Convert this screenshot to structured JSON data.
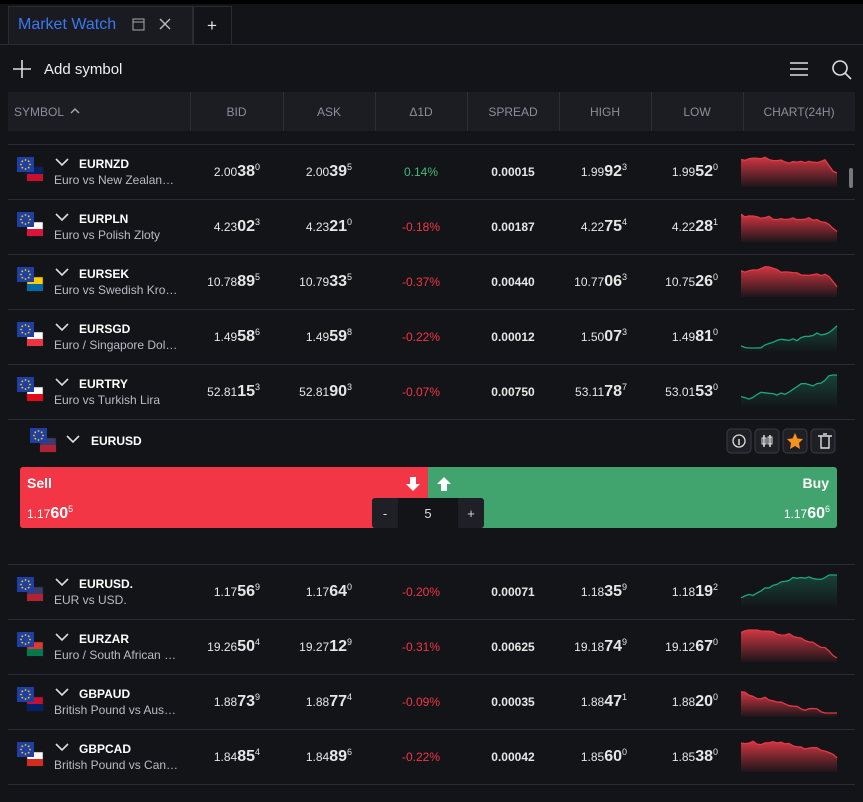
{
  "tab": {
    "title": "Market Watch",
    "add_tab": "+"
  },
  "toolbar": {
    "add_symbol": "Add symbol"
  },
  "columns": [
    "SYMBOL",
    "BID",
    "ASK",
    "Δ1D",
    "SPREAD",
    "HIGH",
    "LOW",
    "CHART(24H)"
  ],
  "rows": [
    {
      "symbol": "EURNZD",
      "desc": "Euro vs New Zealan…",
      "bid": [
        "2.00",
        "38",
        "0"
      ],
      "ask": [
        "2.00",
        "39",
        "5"
      ],
      "change": "0.14%",
      "spread": "0.00015",
      "high": [
        "1.99",
        "92",
        "3"
      ],
      "low": [
        "1.99",
        "52",
        "0"
      ]
    },
    {
      "symbol": "EURPLN",
      "desc": "Euro vs Polish Zloty",
      "bid": [
        "4.23",
        "02",
        "3"
      ],
      "ask": [
        "4.23",
        "21",
        "0"
      ],
      "change": "-0.18%",
      "spread": "0.00187",
      "high": [
        "4.22",
        "75",
        "4"
      ],
      "low": [
        "4.22",
        "28",
        "1"
      ]
    },
    {
      "symbol": "EURSEK",
      "desc": "Euro vs Swedish Kro…",
      "bid": [
        "10.78",
        "89",
        "5"
      ],
      "ask": [
        "10.79",
        "33",
        "5"
      ],
      "change": "-0.37%",
      "spread": "0.00440",
      "high": [
        "10.77",
        "06",
        "3"
      ],
      "low": [
        "10.75",
        "26",
        "0"
      ]
    },
    {
      "symbol": "EURSGD",
      "desc": "Euro / Singapore Dol…",
      "bid": [
        "1.49",
        "58",
        "6"
      ],
      "ask": [
        "1.49",
        "59",
        "8"
      ],
      "change": "-0.22%",
      "spread": "0.00012",
      "high": [
        "1.50",
        "07",
        "3"
      ],
      "low": [
        "1.49",
        "81",
        "0"
      ]
    },
    {
      "symbol": "EURTRY",
      "desc": "Euro vs Turkish Lira",
      "bid": [
        "52.81",
        "15",
        "3"
      ],
      "ask": [
        "52.81",
        "90",
        "3"
      ],
      "change": "-0.07%",
      "spread": "0.00750",
      "high": [
        "53.11",
        "78",
        "7"
      ],
      "low": [
        "53.01",
        "53",
        "0"
      ]
    }
  ],
  "expanded": {
    "symbol": "EURUSD",
    "sell_label": "Sell",
    "buy_label": "Buy",
    "sell": [
      "1.17",
      "60",
      "5"
    ],
    "buy": [
      "1.17",
      "60",
      "6"
    ],
    "minus": "-",
    "quantity": "5",
    "plus": "+"
  },
  "rows_after": [
    {
      "symbol": "EURUSD.",
      "desc": "EUR vs USD.",
      "bid": [
        "1.17",
        "56",
        "9"
      ],
      "ask": [
        "1.17",
        "64",
        "0"
      ],
      "change": "-0.20%",
      "spread": "0.00071",
      "high": [
        "1.18",
        "35",
        "9"
      ],
      "low": [
        "1.18",
        "19",
        "2"
      ]
    },
    {
      "symbol": "EURZAR",
      "desc": "Euro / South African …",
      "bid": [
        "19.26",
        "50",
        "4"
      ],
      "ask": [
        "19.27",
        "12",
        "9"
      ],
      "change": "-0.31%",
      "spread": "0.00625",
      "high": [
        "19.18",
        "74",
        "9"
      ],
      "low": [
        "19.12",
        "67",
        "0"
      ]
    },
    {
      "symbol": "GBPAUD",
      "desc": "British Pound vs Aus…",
      "bid": [
        "1.88",
        "73",
        "9"
      ],
      "ask": [
        "1.88",
        "77",
        "4"
      ],
      "change": "-0.09%",
      "spread": "0.00035",
      "high": [
        "1.88",
        "47",
        "1"
      ],
      "low": [
        "1.88",
        "20",
        "0"
      ]
    },
    {
      "symbol": "GBPCAD",
      "desc": "British Pound vs Can…",
      "bid": [
        "1.84",
        "85",
        "4"
      ],
      "ask": [
        "1.84",
        "89",
        "6"
      ],
      "change": "-0.22%",
      "spread": "0.00042",
      "high": [
        "1.85",
        "60",
        "0"
      ],
      "low": [
        "1.85",
        "38",
        "0"
      ]
    }
  ]
}
